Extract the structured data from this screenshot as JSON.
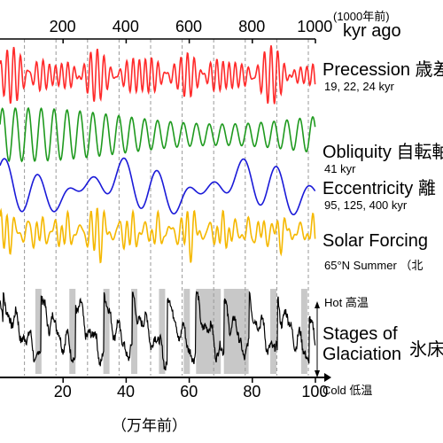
{
  "chart_data": {
    "type": "line",
    "top_axis": {
      "unit_note": "(1000年前)",
      "label": "kyr ago",
      "ticks": [
        "200",
        "400",
        "600",
        "800",
        "1000"
      ],
      "range": [
        0,
        1000
      ]
    },
    "bottom_axis": {
      "label": "（万年前）",
      "ticks": [
        "20",
        "40",
        "60",
        "80",
        "100"
      ],
      "range": [
        0,
        100
      ]
    },
    "series": [
      {
        "name": "Precession",
        "name_jp": "歳差",
        "periods": "19, 22, 24 kyr",
        "color": "#ff2a2a",
        "period_values_kyr": [
          19,
          22,
          24
        ]
      },
      {
        "name": "Obliquity",
        "name_jp": "自転軸",
        "periods": "41 kyr",
        "color": "#1f9a1f",
        "period_values_kyr": [
          41
        ]
      },
      {
        "name": "Eccentricity",
        "name_jp": "離",
        "periods": "95, 125, 400 kyr",
        "color": "#1a1ad8",
        "period_values_kyr": [
          95,
          125,
          400
        ]
      },
      {
        "name": "Solar Forcing",
        "name_jp": "",
        "periods": "65°N Summer",
        "periods_note": "（北",
        "color": "#f5b800"
      },
      {
        "name": "Stages of Glaciation",
        "name_jp": "氷床",
        "color": "#000000"
      }
    ],
    "glaciation_scale": {
      "hot": "Hot",
      "hot_jp": "高温",
      "cold": "Cold",
      "cold_jp": "低温"
    },
    "glacial_terminations_kyr": [
      100,
      120,
      210,
      230,
      320,
      340,
      410,
      430,
      500,
      520,
      580,
      600,
      620,
      700,
      710,
      790,
      860,
      880,
      960,
      980
    ],
    "grid": "dashed vertical at 100 kyr intervals"
  }
}
